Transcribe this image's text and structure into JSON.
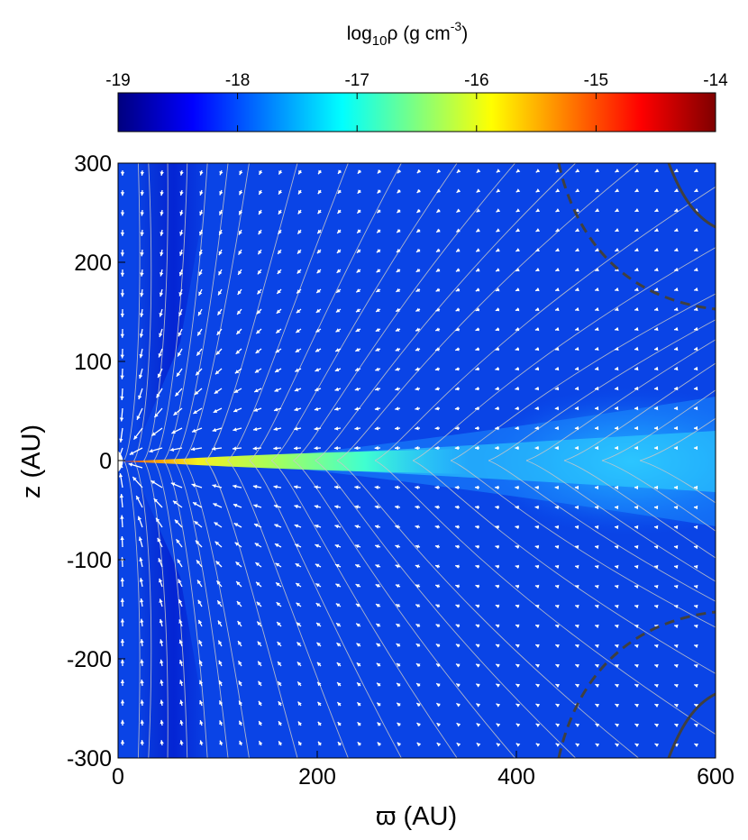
{
  "chart_data": {
    "type": "heatmap",
    "colorbar": {
      "label_parts": [
        "log",
        "10",
        "ρ (g cm",
        "-3",
        ")"
      ],
      "min": -19,
      "max": -14,
      "ticks": [
        -19,
        -18,
        -17,
        -16,
        -15,
        -14
      ],
      "tick_labels": [
        "-19",
        "-18",
        "-17",
        "-16",
        "-15",
        "-14"
      ],
      "colormap": "jet",
      "colors": [
        "#00007f",
        "#0000ff",
        "#007fff",
        "#00ffff",
        "#7fff7f",
        "#ffff00",
        "#ff7f00",
        "#ff0000",
        "#7f0000"
      ]
    },
    "xlabel": "ϖ (AU)",
    "ylabel": "z (AU)",
    "xlim": [
      0,
      600
    ],
    "ylim": [
      -300,
      300
    ],
    "xticks": [
      0,
      200,
      400,
      600
    ],
    "xtick_labels": [
      "0",
      "200",
      "400",
      "600"
    ],
    "yticks": [
      300,
      200,
      100,
      0,
      -100,
      -200,
      -300
    ],
    "ytick_labels": [
      "300",
      "200",
      "100",
      "0",
      "-100",
      "-200",
      "-300"
    ],
    "field_lines": {
      "color": "#c8c8c8",
      "description": "thin grey magnetic field lines, pinched toward the midplane"
    },
    "velocity_vectors": {
      "color": "#ffffff",
      "description": "white arrows pointing inward toward the origin"
    },
    "dashed_contour": {
      "color": "#404040",
      "style": "dashed"
    },
    "solid_contour": {
      "color": "#404040",
      "style": "solid"
    },
    "midplane_disk": {
      "description": "dense flared disk along z = 0, densest near the origin",
      "density_samples": [
        {
          "r": 20,
          "log_rho": -14.9
        },
        {
          "r": 100,
          "log_rho": -15.9
        },
        {
          "r": 200,
          "log_rho": -16.2
        },
        {
          "r": 400,
          "log_rho": -16.8
        },
        {
          "r": 600,
          "log_rho": -17.1
        }
      ],
      "background_log_rho": -18.2
    }
  }
}
